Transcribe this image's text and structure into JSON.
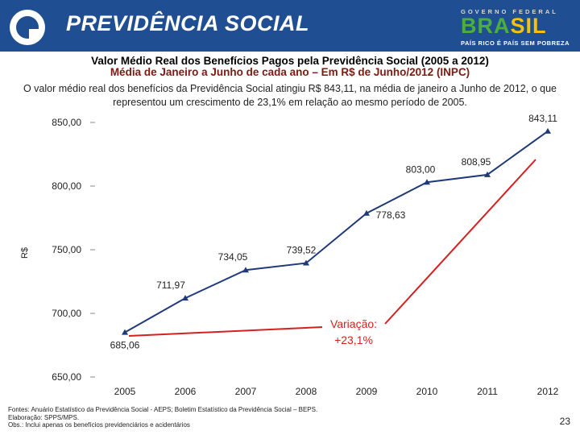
{
  "header": {
    "brand": "PREVIDÊNCIA SOCIAL",
    "gov_top": "GOVERNO FEDERAL",
    "gov_brasil": "BRASIL",
    "gov_bottom": "PAÍS RICO É PAÍS SEM POBREZA"
  },
  "title": "Valor Médio Real dos Benefícios Pagos pela Previdência Social (2005 a 2012)",
  "subtitle": "Média de Janeiro a Junho de cada ano – Em R$ de Junho/2012 (INPC)",
  "description": "O valor médio real dos benefícios da Previdência Social atingiu R$ 843,11, na média de janeiro a Junho de 2012, o que representou um crescimento de 23,1% em relação ao mesmo período de 2005.",
  "chart_data": {
    "type": "line",
    "categories": [
      "2005",
      "2006",
      "2007",
      "2008",
      "2009",
      "2010",
      "2011",
      "2012"
    ],
    "values": [
      685.06,
      711.97,
      734.05,
      739.52,
      778.63,
      803.0,
      808.95,
      843.11
    ],
    "data_labels": [
      "685,06",
      "711,97",
      "734,05",
      "739,52",
      "778,63",
      "803,00",
      "808,95",
      "843,11"
    ],
    "ylabel": "R$",
    "ylim": [
      650,
      850
    ],
    "yticks": [
      "650,00",
      "700,00",
      "750,00",
      "800,00",
      "850,00"
    ],
    "ytick_values": [
      650,
      700,
      750,
      800,
      850
    ],
    "series_color": "#1f3a7a",
    "annotation": {
      "label_line1": "Variação:",
      "label_line2": "+23,1%",
      "color": "#d42020"
    }
  },
  "footer": {
    "sources": "Fontes: Anuário Estatístico da Previdência Social - AEPS; Boletim Estatístico da Previdência Social – BEPS.",
    "prepared_by": "Elaboração: SPPS/MPS.",
    "note": "Obs.: Inclui apenas os benefícios previdenciários e acidentários",
    "page_number": "23"
  },
  "colors": {
    "header_bg": "#1f4e92",
    "subtitle": "#7b1a12",
    "brasil_green": "#4caf3d",
    "brasil_yellow": "#f4c20d"
  }
}
